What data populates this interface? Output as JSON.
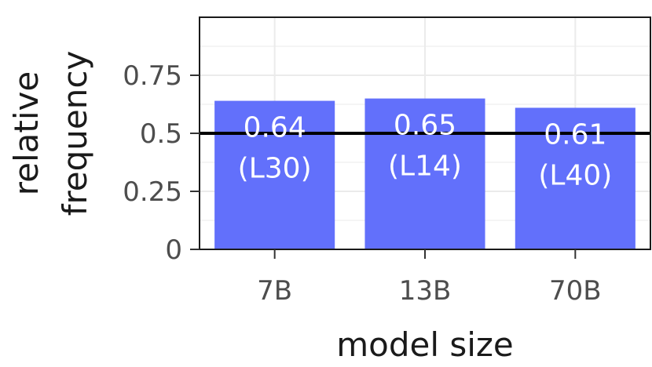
{
  "chart_data": {
    "type": "bar",
    "categories": [
      "7B",
      "13B",
      "70B"
    ],
    "values": [
      0.64,
      0.65,
      0.61
    ],
    "bar_labels": [
      [
        "0.64",
        "(L30)"
      ],
      [
        "0.65",
        "(L14)"
      ],
      [
        "0.61",
        "(L40)"
      ]
    ],
    "reference_line": 0.5,
    "title": "",
    "xlabel": "model size",
    "ylabel": [
      "relative",
      "frequency"
    ],
    "yticks": [
      0,
      0.25,
      0.5,
      0.75
    ],
    "ytick_labels": [
      "0",
      "0.25",
      "0.5",
      "0.75"
    ],
    "ylim": [
      0,
      1.0
    ],
    "grid": true,
    "legend": "none",
    "bar_color": "#6270fb",
    "grid_color": "#ebebeb",
    "reference_line_color": "#000000"
  }
}
